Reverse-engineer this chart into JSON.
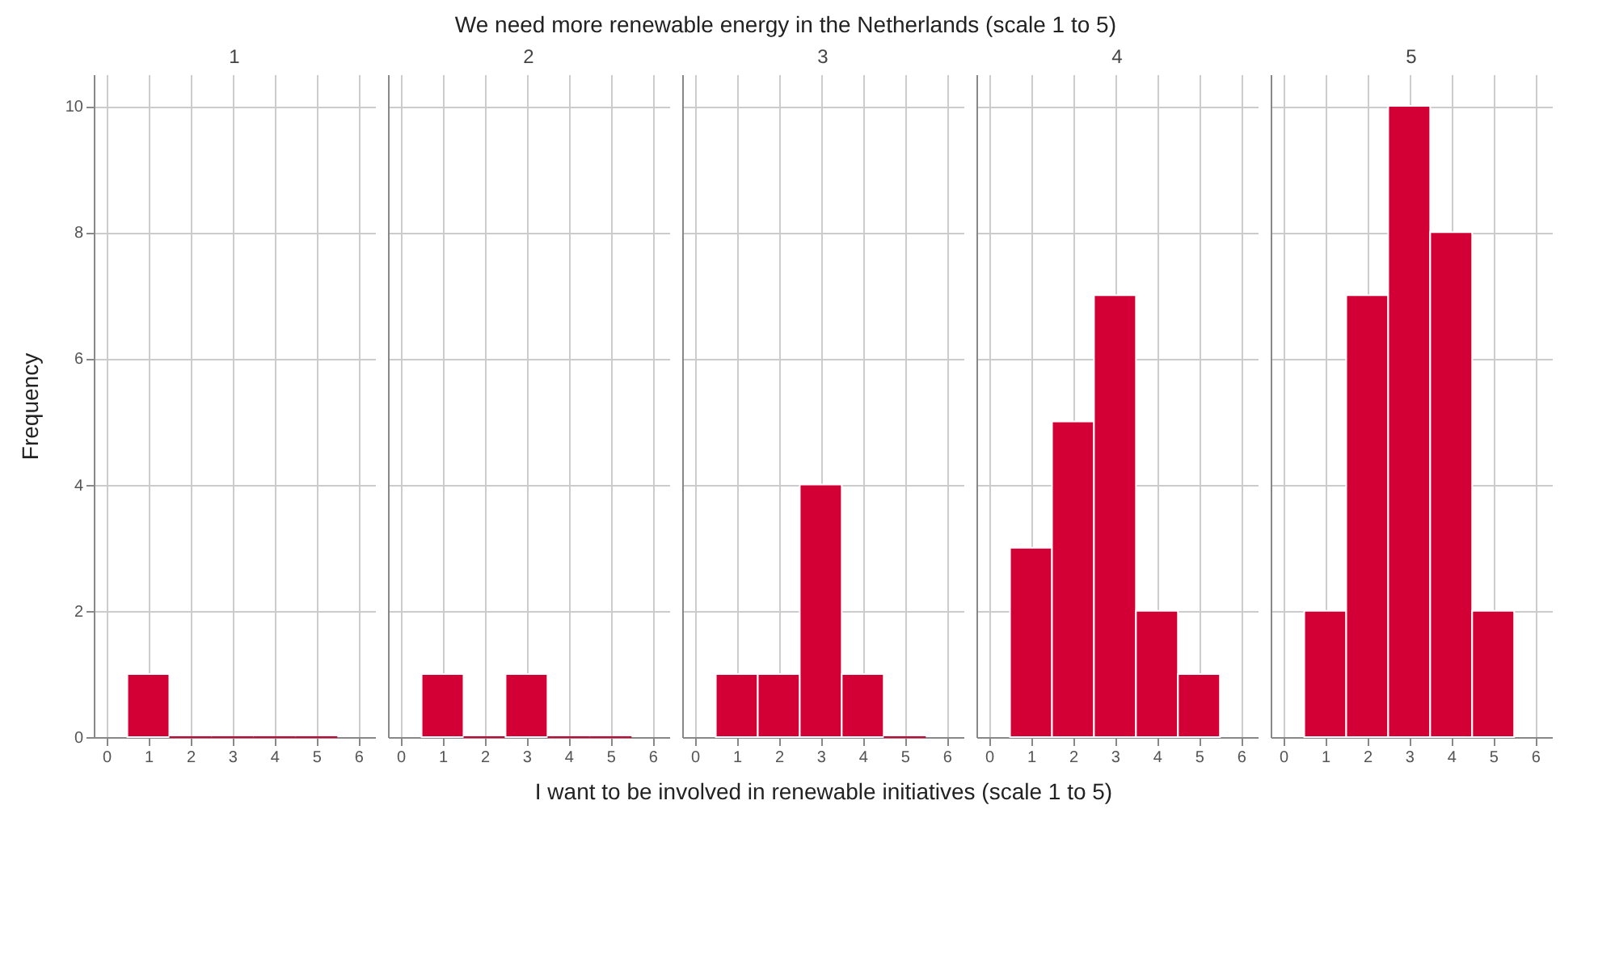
{
  "chart_data": [
    {
      "type": "histogram",
      "title": "1",
      "annotations": [
        "We need more renewable energy in the Netherlands (scale 1 to 5)"
      ],
      "ylabel": "Frequency",
      "bins": [
        0.5,
        1.5,
        2.5,
        3.5,
        4.5,
        5.5
      ],
      "values": [
        1,
        0,
        0,
        0,
        0
      ],
      "color": "#d20034",
      "xlim": [
        -0.3,
        6.4
      ],
      "xticks": [
        0,
        1,
        2,
        3,
        4,
        5,
        6
      ],
      "ylim": [
        0,
        10.5
      ],
      "yticks": [
        0,
        2,
        4,
        6,
        8,
        10
      ],
      "grid": true
    },
    {
      "type": "histogram",
      "title": "2",
      "bins": [
        0.5,
        1.5,
        2.5,
        3.5,
        4.5,
        5.5
      ],
      "values": [
        1,
        0,
        1,
        0,
        0
      ],
      "color": "#d20034",
      "xlim": [
        -0.3,
        6.4
      ],
      "xticks": [
        0,
        1,
        2,
        3,
        4,
        5,
        6
      ],
      "ylim": [
        0,
        10.5
      ],
      "yticks": [
        0,
        2,
        4,
        6,
        8,
        10
      ],
      "grid": true,
      "tick_labels": "x"
    },
    {
      "type": "histogram",
      "title": "3",
      "xlabel": "I want to be involved in renewable initiatives (scale 1 to 5)",
      "bins": [
        0.5,
        1.5,
        2.5,
        3.5,
        4.5,
        5.5
      ],
      "values": [
        1,
        1,
        4,
        1,
        0
      ],
      "color": "#d20034",
      "xlim": [
        -0.3,
        6.4
      ],
      "xticks": [
        0,
        1,
        2,
        3,
        4,
        5,
        6
      ],
      "ylim": [
        0,
        10.5
      ],
      "yticks": [
        0,
        2,
        4,
        6,
        8,
        10
      ],
      "grid": true,
      "tick_labels": "x"
    },
    {
      "type": "histogram",
      "title": "4",
      "bins": [
        0.5,
        1.5,
        2.5,
        3.5,
        4.5,
        5.5
      ],
      "values": [
        3,
        5,
        7,
        2,
        1
      ],
      "color": "#d20034",
      "xlim": [
        -0.3,
        6.4
      ],
      "xticks": [
        0,
        1,
        2,
        3,
        4,
        5,
        6
      ],
      "ylim": [
        0,
        10.5
      ],
      "yticks": [
        0,
        2,
        4,
        6,
        8,
        10
      ],
      "grid": true,
      "tick_labels": "x"
    },
    {
      "type": "histogram",
      "title": "5",
      "bins": [
        0.5,
        1.5,
        2.5,
        3.5,
        4.5,
        5.5
      ],
      "values": [
        2,
        7,
        10,
        8,
        2
      ],
      "color": "#d20034",
      "xlim": [
        -0.3,
        6.4
      ],
      "xticks": [
        0,
        1,
        2,
        3,
        4,
        5,
        6
      ],
      "ylim": [
        0,
        10.5
      ],
      "yticks": [
        0,
        2,
        4,
        6,
        8,
        10
      ],
      "grid": true,
      "tick_labels": "x"
    }
  ]
}
